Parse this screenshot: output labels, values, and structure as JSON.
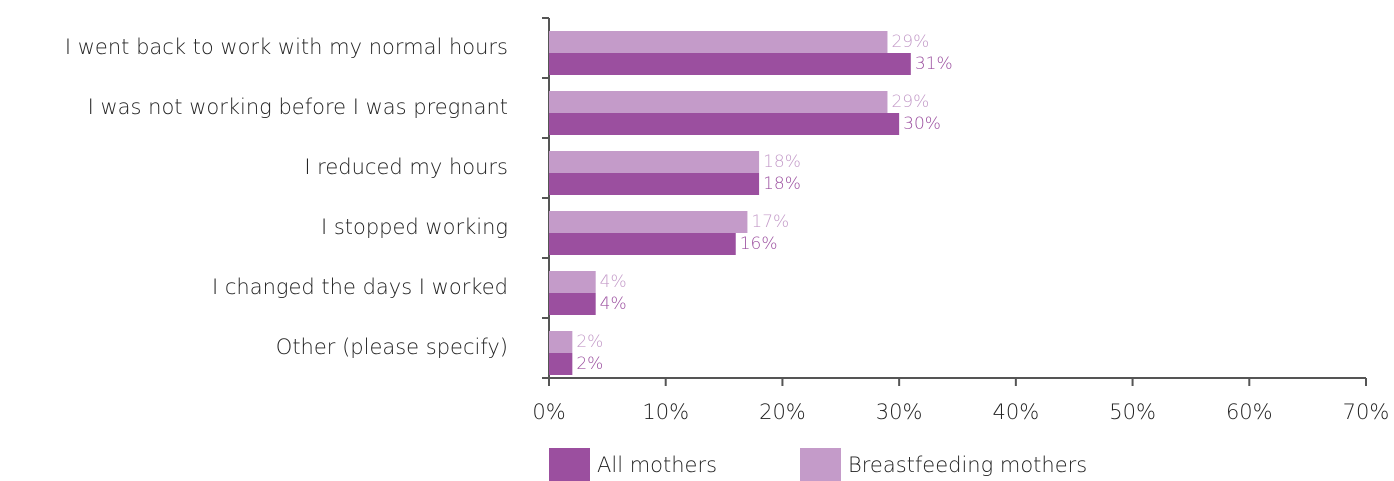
{
  "chart_data": {
    "type": "bar",
    "orientation": "horizontal",
    "categories": [
      "I went back to work with my normal hours",
      "I was not working before I was pregnant",
      "I reduced my hours",
      "I stopped working",
      "I changed the days I worked",
      "Other (please specify)"
    ],
    "series": [
      {
        "name": "All mothers",
        "color": "#9b4f9f",
        "values": [
          31,
          30,
          18,
          16,
          4,
          2
        ],
        "value_labels": [
          "31%",
          "30%",
          "18%",
          "16%",
          "4%",
          "2%"
        ]
      },
      {
        "name": "Breastfeeding mothers",
        "color": "#c49bc9",
        "values": [
          29,
          29,
          18,
          17,
          4,
          2
        ],
        "value_labels": [
          "29%",
          "29%",
          "18%",
          "17%",
          "4%",
          "2%"
        ]
      }
    ],
    "xlim": [
      0,
      70
    ],
    "xticks": [
      {
        "value": 0,
        "label": "0%"
      },
      {
        "value": 10,
        "label": "10%"
      },
      {
        "value": 20,
        "label": "20%"
      },
      {
        "value": 30,
        "label": "30%"
      },
      {
        "value": 40,
        "label": "40%"
      },
      {
        "value": 50,
        "label": "50%"
      },
      {
        "value": 60,
        "label": "60%"
      },
      {
        "value": 70,
        "label": "70%"
      }
    ],
    "legend": "bottom"
  }
}
